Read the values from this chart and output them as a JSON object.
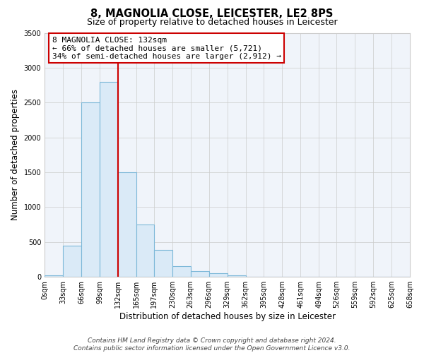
{
  "title": "8, MAGNOLIA CLOSE, LEICESTER, LE2 8PS",
  "subtitle": "Size of property relative to detached houses in Leicester",
  "xlabel": "Distribution of detached houses by size in Leicester",
  "ylabel": "Number of detached properties",
  "bar_edges": [
    0,
    33,
    66,
    99,
    132,
    165,
    197,
    230,
    263,
    296,
    329,
    362,
    395,
    428,
    461,
    494,
    526,
    559,
    592,
    625,
    658
  ],
  "bar_heights": [
    25,
    450,
    2500,
    2800,
    1500,
    750,
    390,
    150,
    80,
    50,
    18,
    5,
    2,
    0,
    0,
    0,
    0,
    0,
    0,
    0
  ],
  "bar_color": "#daeaf7",
  "bar_edgecolor": "#7db8d8",
  "vline_x": 132,
  "vline_color": "#cc0000",
  "ylim": [
    0,
    3500
  ],
  "yticks": [
    0,
    500,
    1000,
    1500,
    2000,
    2500,
    3000,
    3500
  ],
  "xtick_labels": [
    "0sqm",
    "33sqm",
    "66sqm",
    "99sqm",
    "132sqm",
    "165sqm",
    "197sqm",
    "230sqm",
    "263sqm",
    "296sqm",
    "329sqm",
    "362sqm",
    "395sqm",
    "428sqm",
    "461sqm",
    "494sqm",
    "526sqm",
    "559sqm",
    "592sqm",
    "625sqm",
    "658sqm"
  ],
  "annotation_text_line1": "8 MAGNOLIA CLOSE: 132sqm",
  "annotation_text_line2": "← 66% of detached houses are smaller (5,721)",
  "annotation_text_line3": "34% of semi-detached houses are larger (2,912) →",
  "footer_line1": "Contains HM Land Registry data © Crown copyright and database right 2024.",
  "footer_line2": "Contains public sector information licensed under the Open Government Licence v3.0.",
  "title_fontsize": 10.5,
  "subtitle_fontsize": 9,
  "axis_label_fontsize": 8.5,
  "tick_fontsize": 7,
  "annotation_fontsize": 8,
  "footer_fontsize": 6.5,
  "grid_color": "#cccccc",
  "bg_color": "#f0f4fa"
}
